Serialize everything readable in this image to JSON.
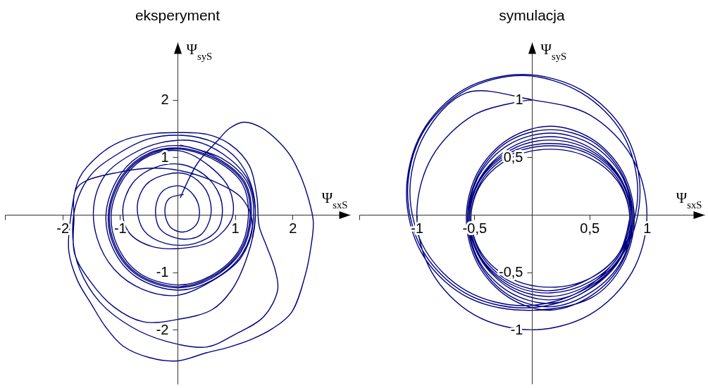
{
  "chart_data": [
    {
      "type": "line",
      "title": "eksperyment",
      "xlabel": "Ψ$_{sxS}$",
      "ylabel": "Ψ$_{syS}$",
      "xlim": [
        -3,
        3
      ],
      "ylim": [
        -2.95,
        3
      ],
      "xticks": [
        {
          "value": -3,
          "label": null
        },
        -2,
        -1,
        1,
        2
      ],
      "yticks": [
        -2,
        -1,
        1,
        2
      ],
      "series": [
        {
          "color": "#000080",
          "x": [
            0.05,
            0.35,
            0.68,
            0.9,
            1.15,
            1.45,
            1.75,
            1.98,
            2.15,
            2.27,
            2.36,
            2.32,
            2.22,
            1.98,
            1.65,
            1.3,
            0.9,
            0.5,
            0,
            -0.5,
            -0.95,
            -1.25,
            -1.5,
            -1.74,
            -1.89,
            -1.85,
            -1.7,
            -1.35,
            -1,
            -0.51,
            0,
            0.51,
            0.92,
            1.25,
            1.38,
            1.42,
            1.55,
            1.7,
            1.74,
            1.5,
            1,
            0.5,
            -0.2,
            -0.8,
            -1.35,
            -1.7,
            -1.82,
            -1.76,
            -1.5,
            -1.05,
            -0.5,
            0.1,
            0.65,
            1.05,
            1.3,
            1.35,
            1.22,
            0.94,
            0.6,
            0,
            -0.6,
            -1.11,
            -1.53,
            -1.79,
            -1.8,
            -1.74,
            -1.02,
            -0.17,
            0.68,
            1.15,
            1.3,
            1.1,
            0.6,
            0,
            -0.6,
            -1.1,
            -1.4,
            -1.45,
            -1.25,
            -0.8,
            -0.3,
            0.3,
            0.8,
            1.2,
            1.35,
            1.3
          ],
          "values": [
            0.3,
            0.9,
            1.27,
            1.5,
            1.61,
            1.52,
            1.28,
            1,
            0.65,
            0.3,
            -0.12,
            -0.55,
            -1.05,
            -1.7,
            -1.98,
            -2.16,
            -2.3,
            -2.4,
            -2.54,
            -2.48,
            -2.28,
            -1.95,
            -1.55,
            -1.14,
            -0.63,
            0,
            0.65,
            1.05,
            1.27,
            1.4,
            1.43,
            1.4,
            1.22,
            0.85,
            0.31,
            -0.2,
            -0.55,
            -0.97,
            -1.31,
            -1.77,
            -2.08,
            -2.3,
            -2.2,
            -1.95,
            -1.52,
            -0.95,
            -0.4,
            0.2,
            0.7,
            1.05,
            1.32,
            1.38,
            1.25,
            0.95,
            0.45,
            -0.1,
            -0.7,
            -1.31,
            -1.65,
            -1.82,
            -1.86,
            -1.6,
            -1.14,
            -0.67,
            -0.1,
            0.48,
            0.74,
            0.8,
            0.56,
            0.25,
            -0.2,
            -0.75,
            -1.15,
            -1.4,
            -1.3,
            -0.95,
            -0.4,
            0.2,
            0.7,
            1.05,
            1.25,
            1.28,
            1.05,
            0.65,
            0.1,
            -0.4
          ]
        },
        {
          "color": "#000080",
          "x": [
            0.1,
            -0.15,
            -0.22,
            -0.12,
            0.1,
            0.32,
            0.38,
            0.28,
            0.05,
            -0.25,
            -0.38,
            -0.3,
            0.05,
            0.4,
            0.58,
            0.5,
            0.18,
            -0.2,
            -0.55,
            -0.7,
            -0.58,
            -0.2,
            0.3,
            0.7,
            0.77,
            0.55,
            0.1,
            -0.4,
            -0.78,
            -0.95,
            -0.85,
            -0.45,
            0.1,
            0.6,
            0.95,
            0.9,
            0.55,
            0.05,
            -0.48,
            -0.91,
            -1.15,
            -1.05,
            -0.67,
            0,
            0.58,
            1.06,
            1.23,
            1.13,
            0.72,
            0.05,
            -0.49,
            -0.93,
            -1.18,
            -1.08,
            -0.69,
            0,
            0.59,
            1.08,
            1.26,
            1.16,
            0.74,
            0.05,
            -0.5,
            -0.95,
            -1.2,
            -1.1,
            -0.7,
            0,
            0.6,
            1.1,
            1.28,
            1.18,
            0.75,
            0.05,
            -0.52,
            -0.98,
            -1.24,
            -1.13,
            -0.72,
            0,
            0.62,
            1.13,
            1.32,
            1.21,
            0.77,
            0.05
          ],
          "values": [
            0.35,
            0.28,
            0.05,
            -0.22,
            -0.3,
            -0.18,
            0.08,
            0.34,
            0.5,
            0.42,
            0.12,
            -0.25,
            -0.42,
            -0.35,
            0,
            0.42,
            0.7,
            0.7,
            0.52,
            0.15,
            -0.28,
            -0.5,
            -0.5,
            -0.25,
            0.2,
            0.62,
            0.87,
            0.82,
            0.55,
            0.1,
            -0.3,
            -0.55,
            -0.58,
            -0.45,
            -0.05,
            0.45,
            0.85,
            1.11,
            1.03,
            0.67,
            0.05,
            -0.53,
            -1.01,
            -1.22,
            -1.06,
            -0.63,
            -0.05,
            0.53,
            0.91,
            1.14,
            1.05,
            0.69,
            0.05,
            -0.54,
            -1.03,
            -1.25,
            -1.08,
            -0.64,
            -0.05,
            0.54,
            0.93,
            1.16,
            1.07,
            0.7,
            0.05,
            -0.55,
            -1.05,
            -1.27,
            -1.1,
            -0.65,
            -0.05,
            0.55,
            0.95,
            1.2,
            1.1,
            0.72,
            0.05,
            -0.57,
            -1.08,
            -1.31,
            -1.13,
            -0.67,
            -0.05,
            0.57,
            0.98,
            1.21
          ]
        }
      ]
    },
    {
      "type": "line",
      "title": "symulacja",
      "xlabel": "Ψ$_{sxS}$",
      "ylabel": "Ψ$_{syS}$",
      "xlim": [
        -1.5,
        1.5
      ],
      "ylim": [
        -1.47,
        1.5
      ],
      "xticks": [
        {
          "value": -1.5,
          "label": null
        },
        -1,
        {
          "value": -0.5,
          "label": "-0,5"
        },
        {
          "value": 0.5,
          "label": "0,5"
        },
        1
      ],
      "yticks": [
        -1,
        {
          "value": -0.5,
          "label": "-0,5"
        },
        {
          "value": 0.5,
          "label": "0,5"
        },
        1
      ],
      "series": [
        {
          "color": "#000080",
          "x": [
            0,
            -0.5,
            -0.87,
            -1,
            -0.87,
            -0.5,
            0,
            0.5,
            0.87,
            1,
            0.87,
            0.5,
            0,
            -0.57,
            -0.93,
            -1.06,
            -0.93,
            -0.57,
            -0.07,
            0.43,
            0.79,
            0.92,
            0.79,
            0.43,
            -0.07,
            -0.58,
            -0.95,
            -1.08,
            -0.95,
            -0.58,
            -0.07,
            0.44,
            0.81,
            0.94,
            0.81,
            0.44,
            -0.07,
            -0.59,
            -0.96,
            -1.09,
            -0.96,
            -0.59,
            -0.07,
            0.52,
            0.79,
            0.89,
            0.79,
            0.52,
            0.16,
            -0.2,
            -0.47,
            -0.57,
            -0.47,
            -0.2,
            0.16,
            0.52,
            0.78,
            0.88,
            0.78,
            0.52,
            0.16,
            -0.2,
            -0.46,
            -0.56,
            -0.46,
            -0.2,
            0.16,
            0.52,
            0.78,
            0.87,
            0.78,
            0.52,
            0.16,
            -0.2,
            -0.46,
            -0.55,
            -0.46,
            -0.2,
            0.16,
            0.51,
            0.77,
            0.87,
            0.77,
            0.51,
            0.16,
            -0.19,
            -0.45,
            -0.55,
            -0.45,
            -0.19,
            0.16,
            0.51,
            0.77,
            0.86,
            0.77,
            0.51,
            0.16,
            -0.19,
            -0.45,
            -0.54,
            -0.45,
            -0.19,
            0.16,
            0.51,
            0.77,
            0.86,
            0.77,
            0.51,
            0.16,
            -0.19,
            -0.45,
            -0.54,
            -0.45,
            -0.19,
            0.16,
            0.51,
            0.76,
            0.85,
            0.76,
            0.51,
            0.16,
            -0.19,
            -0.44,
            -0.53,
            -0.44,
            -0.19,
            0.16,
            0.51,
            0.76,
            0.85,
            0.76,
            0.51,
            0.16,
            -0.19,
            -0.44,
            -0.53,
            -0.44,
            -0.19,
            0.16,
            0.51,
            0.76,
            0.85
          ],
          "values": [
            1,
            0.87,
            0.5,
            0,
            -0.5,
            -0.87,
            -1,
            -0.87,
            -0.5,
            0,
            0.5,
            0.87,
            1,
            1.06,
            0.7,
            0.2,
            -0.3,
            -0.66,
            -0.79,
            -0.66,
            -0.3,
            0.2,
            0.7,
            1.06,
            1.21,
            1.08,
            0.71,
            0.2,
            -0.31,
            -0.68,
            -0.81,
            -0.68,
            -0.31,
            0.2,
            0.71,
            1.08,
            1.22,
            1.09,
            0.71,
            0.19,
            -0.33,
            -0.7,
            -0.83,
            -0.72,
            -0.43,
            -0.03,
            0.37,
            0.66,
            0.77,
            0.66,
            0.37,
            -0.03,
            -0.43,
            -0.72,
            -0.83,
            -0.7,
            -0.42,
            -0.03,
            0.36,
            0.64,
            0.74,
            0.64,
            0.36,
            -0.03,
            -0.42,
            -0.7,
            -0.8,
            -0.67,
            -0.4,
            -0.03,
            0.34,
            0.61,
            0.71,
            0.61,
            0.34,
            -0.03,
            -0.4,
            -0.67,
            -0.77,
            -0.64,
            -0.38,
            -0.03,
            0.32,
            0.58,
            0.68,
            0.58,
            0.32,
            -0.03,
            -0.38,
            -0.64,
            -0.74,
            -0.62,
            -0.37,
            -0.03,
            0.31,
            0.56,
            0.65,
            0.56,
            0.31,
            -0.03,
            -0.37,
            -0.62,
            -0.71,
            -0.6,
            -0.36,
            -0.03,
            0.3,
            0.54,
            0.62,
            0.54,
            0.3,
            -0.03,
            -0.36,
            -0.6,
            -0.68,
            -0.58,
            -0.35,
            -0.03,
            0.29,
            0.52,
            0.6,
            0.52,
            0.29,
            -0.03,
            -0.35,
            -0.58,
            -0.66,
            -0.55,
            -0.33,
            -0.03,
            0.27,
            0.49,
            0.57,
            0.49,
            0.27,
            -0.03,
            -0.33,
            -0.55,
            -0.63,
            -0.55,
            -0.33,
            -0.03
          ]
        }
      ]
    }
  ]
}
